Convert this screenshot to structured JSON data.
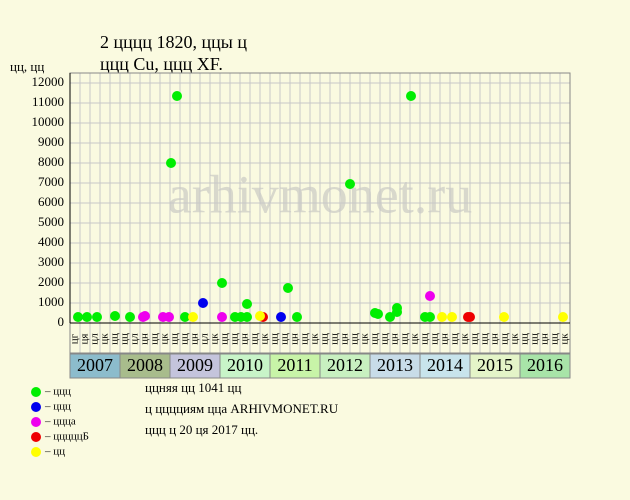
{
  "chart_data": {
    "type": "scatter",
    "title": "2 цццц 1820, ццы ц",
    "subtitle": "ццц Cu, ццц XF.",
    "y_label": "цц, цц",
    "watermark": "arhivmonet.ru",
    "xlim": [
      2007,
      2017
    ],
    "ylim": [
      0,
      12500
    ],
    "yticks": [
      0,
      1000,
      2000,
      3000,
      4000,
      5000,
      6000,
      7000,
      8000,
      9000,
      10000,
      11000,
      12000
    ],
    "grid": true,
    "years": [
      "2007",
      "2008",
      "2009",
      "2010",
      "2011",
      "2012",
      "2013",
      "2014",
      "2015",
      "2016"
    ],
    "year_colors": [
      "#8cbccc",
      "#a8bc8c",
      "#c4c4dc",
      "#c8f4c8",
      "#c8f4a8",
      "#c8f0c0",
      "#c8dce8",
      "#c8e4ec",
      "#e4f4c8",
      "#a8e4a8"
    ],
    "column_labels": [
      "цг",
      "ця",
      "цл",
      "цк",
      "цц",
      "цц",
      "цл",
      "цн",
      "цц",
      "цк",
      "цц",
      "цц",
      "цн",
      "цл",
      "цк",
      "цц",
      "цц",
      "цн",
      "цц",
      "цк",
      "цц",
      "цц",
      "цн",
      "цц",
      "цк",
      "цц",
      "цц",
      "цн",
      "цц",
      "цк",
      "цц",
      "цц",
      "цн",
      "цц",
      "цк",
      "цц",
      "цц",
      "цн",
      "цц",
      "цк",
      "цц",
      "цц",
      "цн",
      "цц",
      "цк",
      "цц",
      "цц",
      "цн",
      "цц",
      "цк"
    ],
    "series": [
      {
        "name": "– ццц",
        "color": "#00ee00",
        "x": [
          2007.16,
          2007.34,
          2007.54,
          2007.9,
          2008.2,
          2009.02,
          2009.14,
          2009.3,
          2010.04,
          2010.3,
          2010.42,
          2010.54,
          2010.54,
          2011.36,
          2011.54,
          2012.6,
          2013.1,
          2013.16,
          2013.4,
          2013.54,
          2013.54,
          2013.82,
          2014.1,
          2014.2
        ],
        "values": [
          300,
          300,
          300,
          350,
          300,
          8000,
          11350,
          300,
          2000,
          300,
          300,
          950,
          300,
          1750,
          300,
          6950,
          500,
          450,
          300,
          750,
          550,
          11350,
          300,
          300
        ]
      },
      {
        "name": "– ццц",
        "color": "#0000ee",
        "x": [
          2009.66,
          2011.22
        ],
        "values": [
          1000,
          300
        ]
      },
      {
        "name": "– ццца",
        "color": "#ee00ee",
        "x": [
          2008.46,
          2008.5,
          2008.86,
          2008.98,
          2010.04,
          2014.2
        ],
        "values": [
          300,
          350,
          300,
          300,
          300,
          1350
        ]
      },
      {
        "name": "– цццццБ",
        "color": "#ee0000",
        "x": [
          2010.86,
          2014.96,
          2015.0
        ],
        "values": [
          300,
          300,
          300
        ]
      },
      {
        "name": "– цц",
        "color": "#ffff00",
        "x": [
          2009.46,
          2010.8,
          2014.44,
          2014.64,
          2015.68,
          2016.86
        ],
        "values": [
          300,
          350,
          300,
          300,
          300,
          300
        ]
      }
    ],
    "footer": [
      "ццняя цц 1041 цц",
      "ц цццциям цца ARHIVMONET.RU",
      "ццц ц 20 ця 2017 цц."
    ]
  }
}
